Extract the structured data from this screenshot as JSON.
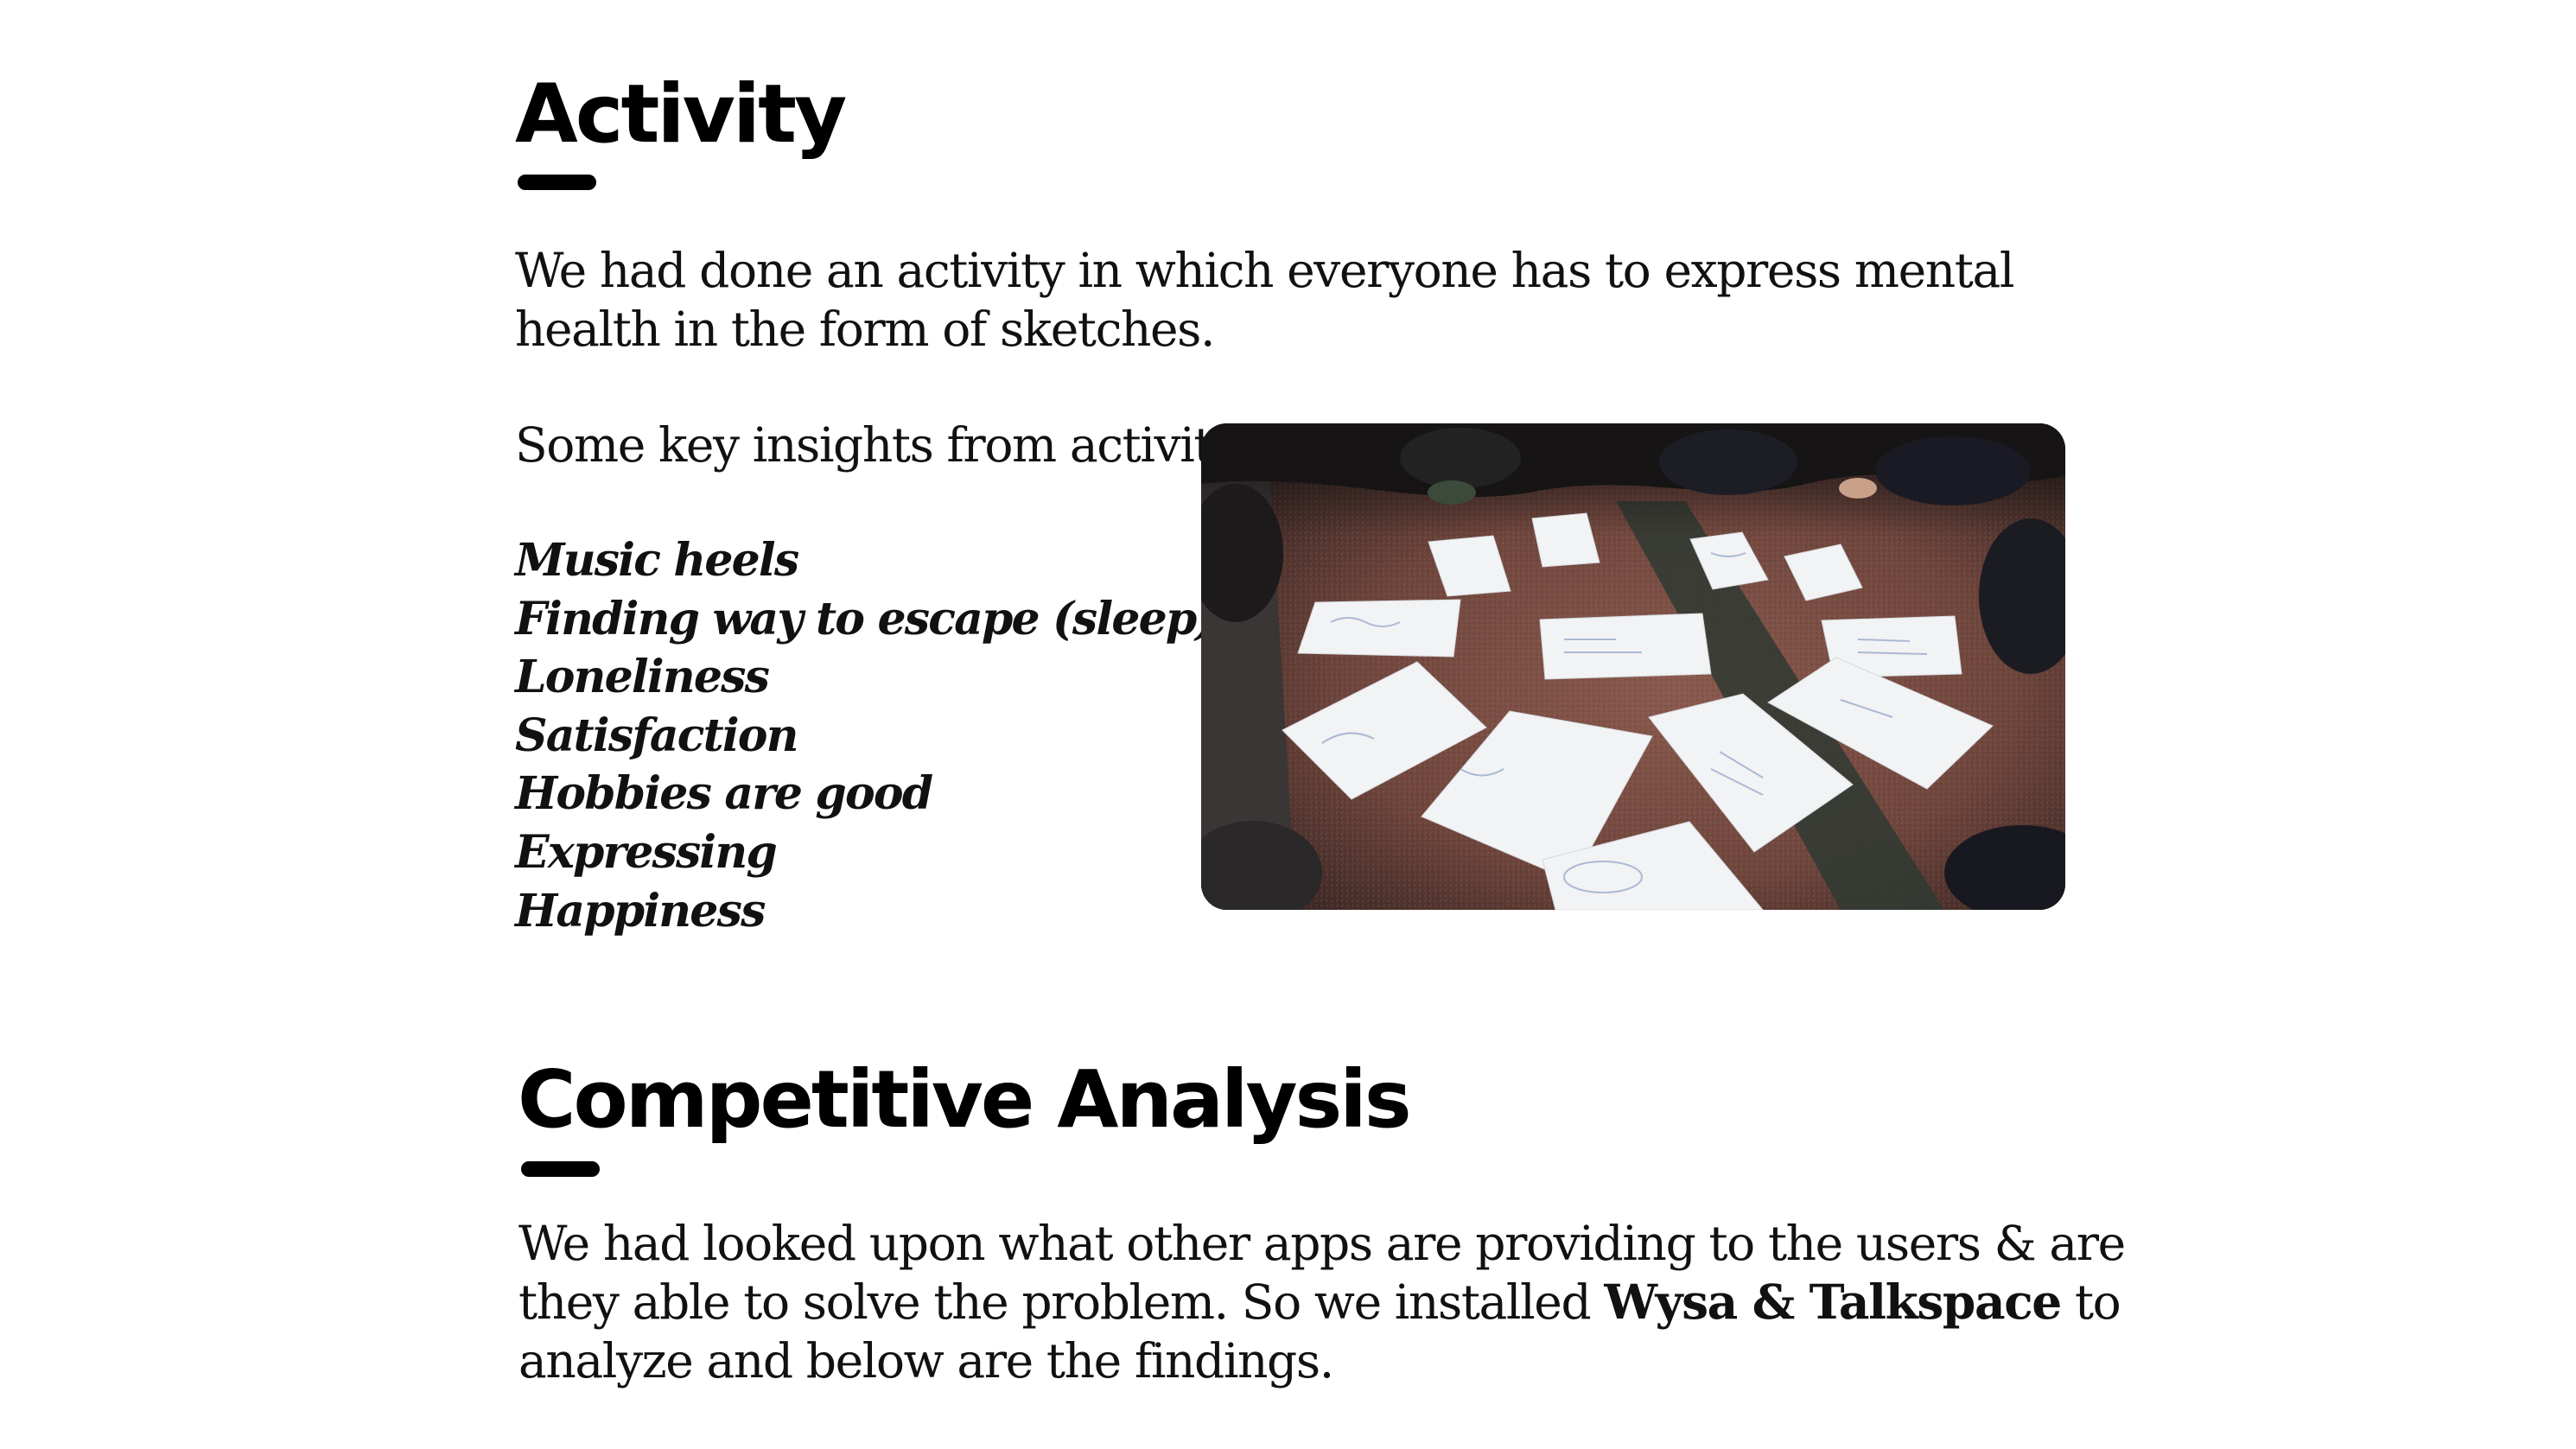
{
  "activity": {
    "title": "Activity",
    "intro": "We had done an activity in which everyone has to express mental health in the form of sketches.",
    "insights_label": "Some key insights from activity :",
    "insights": [
      "Music heels",
      "Finding way to escape (sleep)",
      "Loneliness",
      "Satisfaction",
      "Hobbies are good",
      "Expressing",
      "Happiness"
    ]
  },
  "competitive_analysis": {
    "title": "Competitive Analysis",
    "text_before": "We had looked upon what other apps are providing to the users & are they able to solve the problem. So we installed ",
    "text_bold": "Wysa & Talkspace",
    "text_after": " to analyze and below are the findings."
  },
  "colors": {
    "text": "#111111",
    "heading": "#000000",
    "accent_bar": "#000000",
    "background": "#ffffff"
  }
}
